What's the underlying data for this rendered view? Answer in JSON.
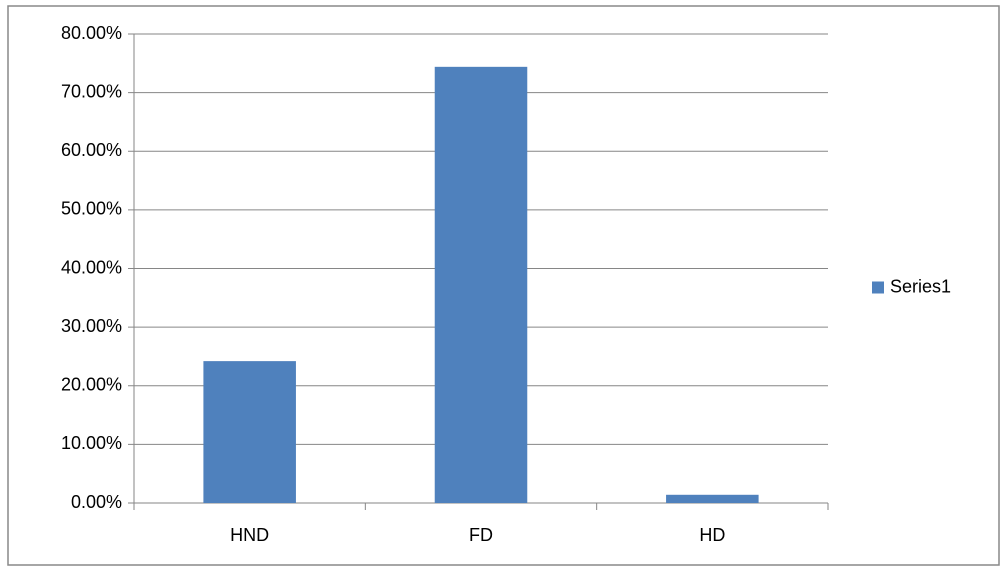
{
  "chart_data": {
    "type": "bar",
    "categories": [
      "HND",
      "FD",
      "HD"
    ],
    "series": [
      {
        "name": "Series1",
        "color": "#4f81bd",
        "values": [
          24.2,
          74.4,
          1.4
        ]
      }
    ],
    "ylim": [
      0,
      80
    ],
    "yticks": [
      {
        "value": 0,
        "label": "0.00%"
      },
      {
        "value": 10,
        "label": "10.00%"
      },
      {
        "value": 20,
        "label": "20.00%"
      },
      {
        "value": 30,
        "label": "30.00%"
      },
      {
        "value": 40,
        "label": "40.00%"
      },
      {
        "value": 50,
        "label": "50.00%"
      },
      {
        "value": 60,
        "label": "60.00%"
      },
      {
        "value": 70,
        "label": "70.00%"
      },
      {
        "value": 80,
        "label": "80.00%"
      }
    ],
    "grid": true,
    "legend": "right"
  }
}
